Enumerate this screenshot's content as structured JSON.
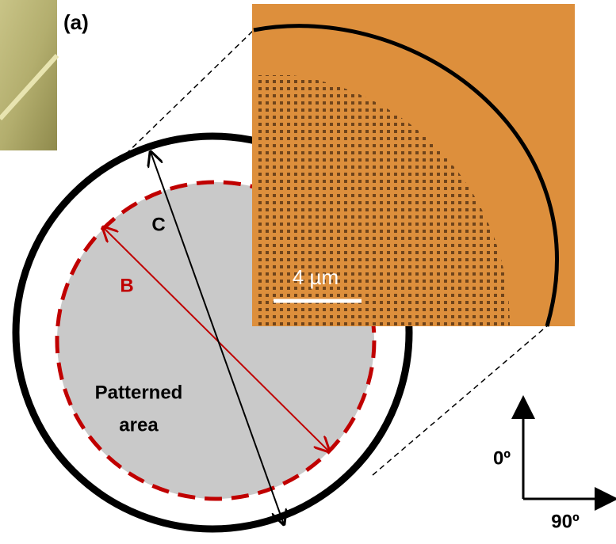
{
  "panel_label": "(a)",
  "diagram": {
    "arrow_c_label": "C",
    "arrow_b_label": "B",
    "region_label": [
      "Patterned",
      "area"
    ]
  },
  "inset": {
    "scale_bar_label": "4 µm"
  },
  "orientation": {
    "vertical_label": "0º",
    "horizontal_label": "90º"
  }
}
